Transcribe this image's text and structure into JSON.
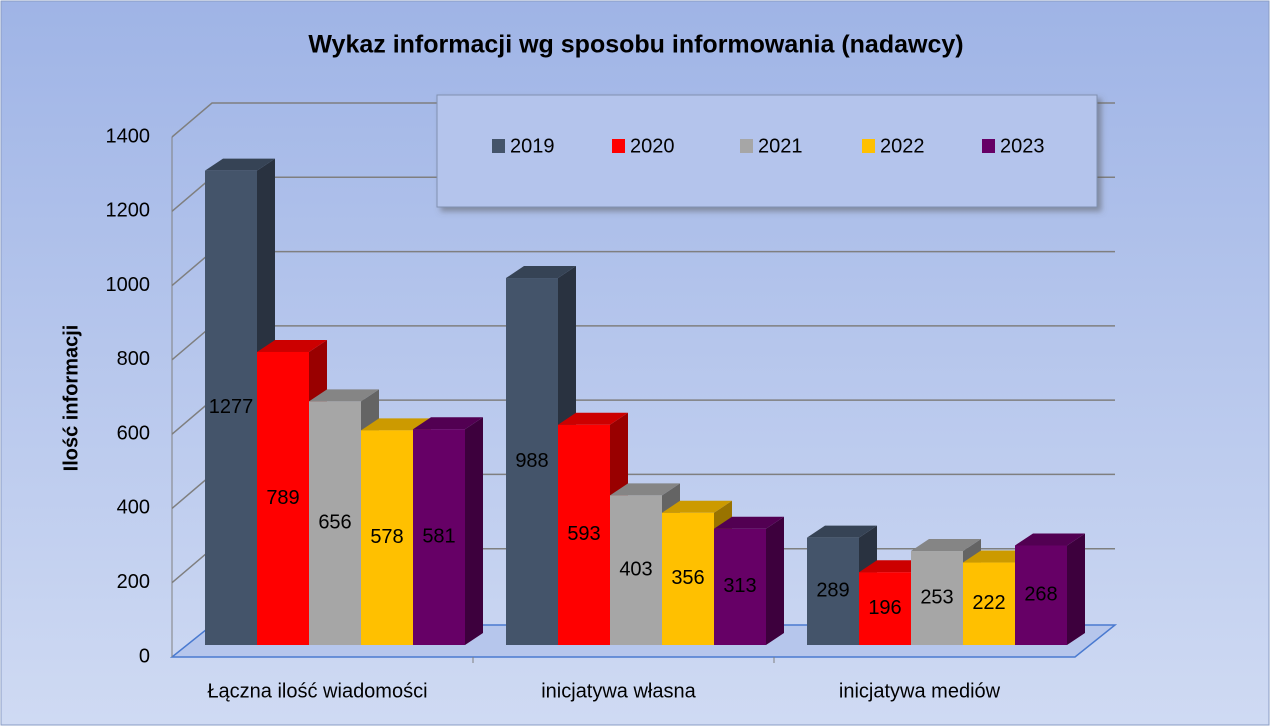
{
  "chart_data": {
    "type": "bar3d",
    "title": "Wykaz informacji wg sposobu informowania (nadawcy)",
    "y_label": "Ilość informacji",
    "categories": [
      "Łączna ilość wiadomości",
      "inicjatywa własna",
      "inicjatywa mediów"
    ],
    "series": [
      {
        "name": "2019",
        "color": "#44546a",
        "values": [
          1277,
          988,
          289
        ]
      },
      {
        "name": "2020",
        "color": "#ff0000",
        "values": [
          789,
          593,
          196
        ]
      },
      {
        "name": "2021",
        "color": "#a6a6a6",
        "values": [
          656,
          403,
          253
        ]
      },
      {
        "name": "2022",
        "color": "#ffc000",
        "values": [
          578,
          356,
          222
        ]
      },
      {
        "name": "2023",
        "color": "#660066",
        "values": [
          581,
          313,
          268
        ]
      }
    ],
    "ylim": [
      0,
      1400
    ],
    "yticks": [
      0,
      200,
      400,
      600,
      800,
      1000,
      1200,
      1400
    ],
    "grid": true,
    "legend": "top-right"
  }
}
